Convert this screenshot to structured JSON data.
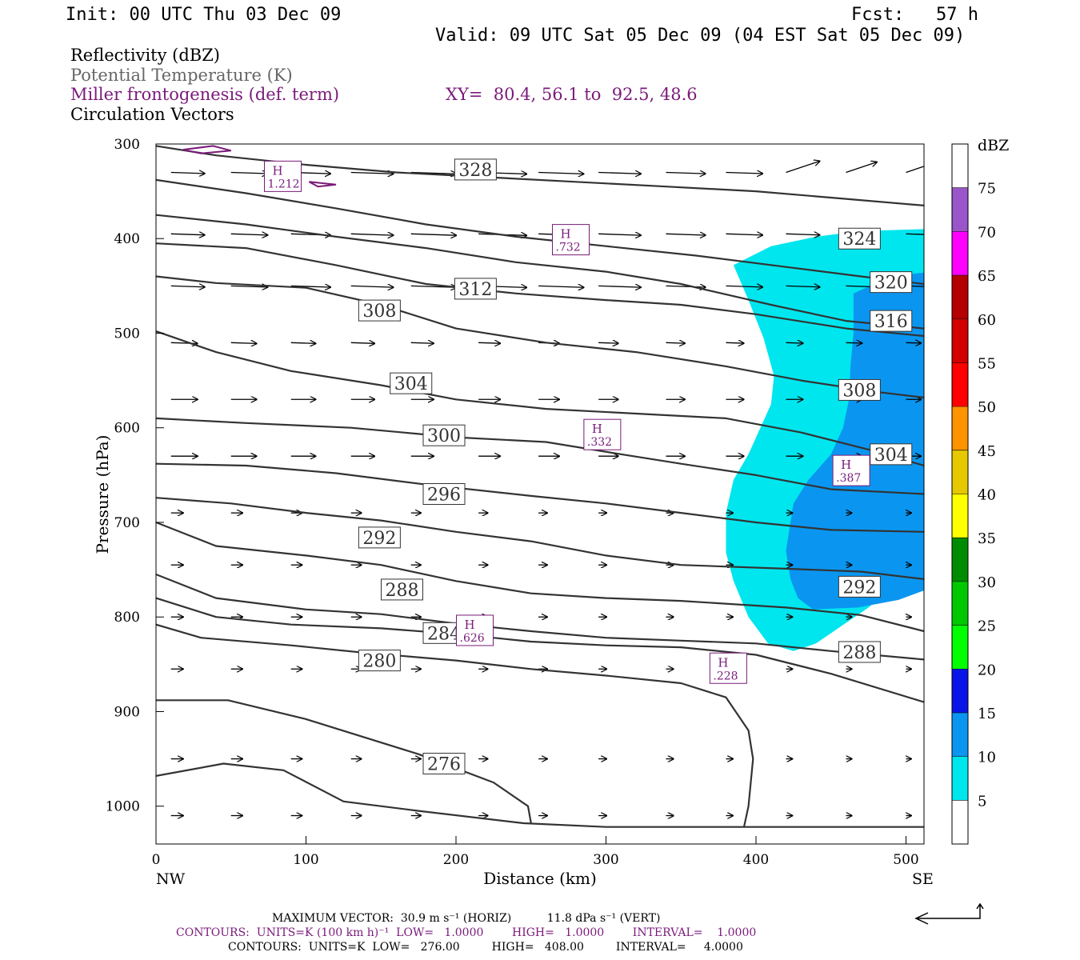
{
  "header": {
    "init": "Init: 00 UTC Thu 03 Dec 09",
    "fcst": "Fcst:   57 h",
    "valid": "Valid: 09 UTC Sat 05 Dec 09 (04 EST Sat 05 Dec 09)"
  },
  "legend": {
    "reflectivity": "Reflectivity (dBZ)",
    "theta": "Potential Temperature (K)",
    "miller": "Miller frontogenesis (def. term)",
    "xy": "XY=  80.4, 56.1 to  92.5, 48.6",
    "vectors": "Circulation Vectors"
  },
  "footer": {
    "max_vector": "MAXIMUM VECTOR:  30.9 m s⁻¹ (HORIZ)          11.8 dPa s⁻¹ (VERT)",
    "contours1": "CONTOURS:  UNITS=K (100 km h)⁻¹  LOW=   1.0000        HIGH=   1.0000        INTERVAL=    1.0000",
    "contours2": "CONTOURS:  UNITS=K  LOW=   276.00         HIGH=   408.00         INTERVAL=     4.0000"
  },
  "chart_data": {
    "type": "contour",
    "xlabel": "Distance (km)",
    "ylabel": "Pressure (hPa)",
    "xlim": [
      0,
      512
    ],
    "ylim": [
      1040,
      300
    ],
    "x_ticks": [
      0,
      100,
      200,
      300,
      400,
      500
    ],
    "y_ticks": [
      300,
      400,
      500,
      600,
      700,
      800,
      900,
      1000
    ],
    "x_end_labels": {
      "left": "NW",
      "right": "SE"
    },
    "colorbar": {
      "label": "dBZ",
      "ticks": [
        5,
        10,
        15,
        20,
        25,
        30,
        35,
        40,
        45,
        50,
        55,
        60,
        65,
        70,
        75
      ],
      "colors": [
        "#ffffff",
        "#00e6ee",
        "#0a96f0",
        "#0b14e6",
        "#00ff00",
        "#00c800",
        "#008c00",
        "#ffff00",
        "#e6c800",
        "#ff9400",
        "#ff0000",
        "#d20000",
        "#b40000",
        "#ff00ff",
        "#9955c9",
        "#ffffff"
      ]
    },
    "theta_contours": [
      {
        "value": 276,
        "points": [
          [
            0,
            968
          ],
          [
            45,
            955
          ],
          [
            85,
            962
          ],
          [
            125,
            995
          ],
          [
            175,
            1005
          ],
          [
            245,
            1018
          ],
          [
            300,
            1022
          ],
          [
            512,
            1022
          ]
        ]
      },
      {
        "value": 276,
        "points": [
          [
            0,
            888
          ],
          [
            48,
            888
          ],
          [
            100,
            908
          ],
          [
            175,
            945
          ],
          [
            225,
            975
          ],
          [
            248,
            1000
          ],
          [
            250,
            1018
          ]
        ]
      },
      {
        "value": 280,
        "points": [
          [
            0,
            808
          ],
          [
            30,
            822
          ],
          [
            90,
            830
          ],
          [
            140,
            838
          ],
          [
            200,
            846
          ],
          [
            250,
            855
          ],
          [
            300,
            862
          ],
          [
            350,
            870
          ],
          [
            380,
            885
          ],
          [
            395,
            920
          ],
          [
            398,
            950
          ],
          [
            395,
            1000
          ],
          [
            392,
            1022
          ]
        ]
      },
      {
        "value": 284,
        "points": [
          [
            0,
            780
          ],
          [
            40,
            800
          ],
          [
            90,
            808
          ],
          [
            150,
            812
          ],
          [
            200,
            818
          ],
          [
            250,
            826
          ],
          [
            300,
            830
          ],
          [
            350,
            832
          ],
          [
            400,
            840
          ],
          [
            450,
            860
          ],
          [
            512,
            890
          ]
        ]
      },
      {
        "value": 288,
        "points": [
          [
            0,
            755
          ],
          [
            40,
            780
          ],
          [
            100,
            792
          ],
          [
            150,
            797
          ],
          [
            200,
            807
          ],
          [
            250,
            815
          ],
          [
            300,
            822
          ],
          [
            350,
            825
          ],
          [
            400,
            828
          ],
          [
            450,
            836
          ],
          [
            512,
            845
          ]
        ]
      },
      {
        "value": 292,
        "points": [
          [
            0,
            700
          ],
          [
            40,
            725
          ],
          [
            100,
            735
          ],
          [
            150,
            745
          ],
          [
            200,
            762
          ],
          [
            250,
            775
          ],
          [
            300,
            780
          ],
          [
            350,
            783
          ],
          [
            420,
            790
          ],
          [
            470,
            798
          ],
          [
            512,
            815
          ]
        ]
      },
      {
        "value": 296,
        "points": [
          [
            0,
            674
          ],
          [
            50,
            680
          ],
          [
            100,
            690
          ],
          [
            150,
            698
          ],
          [
            200,
            710
          ],
          [
            250,
            720
          ],
          [
            300,
            735
          ],
          [
            350,
            745
          ],
          [
            420,
            749
          ],
          [
            470,
            752
          ],
          [
            512,
            760
          ]
        ]
      },
      {
        "value": 300,
        "points": [
          [
            0,
            638
          ],
          [
            60,
            640
          ],
          [
            120,
            648
          ],
          [
            180,
            660
          ],
          [
            250,
            672
          ],
          [
            300,
            680
          ],
          [
            350,
            690
          ],
          [
            400,
            700
          ],
          [
            450,
            708
          ],
          [
            512,
            710
          ]
        ]
      },
      {
        "value": 304,
        "points": [
          [
            0,
            590
          ],
          [
            60,
            595
          ],
          [
            130,
            600
          ],
          [
            200,
            610
          ],
          [
            260,
            615
          ],
          [
            310,
            628
          ],
          [
            350,
            638
          ],
          [
            400,
            650
          ],
          [
            450,
            665
          ],
          [
            512,
            670
          ]
        ]
      },
      {
        "value": 308,
        "points": [
          [
            0,
            498
          ],
          [
            40,
            520
          ],
          [
            90,
            540
          ],
          [
            150,
            555
          ],
          [
            200,
            570
          ],
          [
            260,
            580
          ],
          [
            320,
            585
          ],
          [
            380,
            590
          ],
          [
            430,
            605
          ],
          [
            480,
            625
          ],
          [
            512,
            640
          ]
        ]
      },
      {
        "value": 312,
        "points": [
          [
            0,
            440
          ],
          [
            40,
            447
          ],
          [
            100,
            452
          ],
          [
            150,
            470
          ],
          [
            200,
            495
          ],
          [
            260,
            510
          ],
          [
            320,
            520
          ],
          [
            380,
            535
          ],
          [
            430,
            550
          ],
          [
            480,
            562
          ],
          [
            512,
            568
          ]
        ]
      },
      {
        "value": 316,
        "points": [
          [
            0,
            405
          ],
          [
            60,
            410
          ],
          [
            120,
            428
          ],
          [
            180,
            448
          ],
          [
            240,
            458
          ],
          [
            300,
            465
          ],
          [
            350,
            470
          ],
          [
            400,
            480
          ],
          [
            460,
            495
          ],
          [
            512,
            503
          ]
        ]
      },
      {
        "value": 320,
        "points": [
          [
            0,
            375
          ],
          [
            60,
            385
          ],
          [
            120,
            398
          ],
          [
            180,
            410
          ],
          [
            240,
            425
          ],
          [
            300,
            435
          ],
          [
            350,
            448
          ],
          [
            410,
            470
          ],
          [
            460,
            487
          ],
          [
            512,
            495
          ]
        ]
      },
      {
        "value": 324,
        "points": [
          [
            0,
            338
          ],
          [
            60,
            352
          ],
          [
            120,
            368
          ],
          [
            180,
            385
          ],
          [
            240,
            398
          ],
          [
            300,
            408
          ],
          [
            360,
            418
          ],
          [
            420,
            430
          ],
          [
            470,
            440
          ],
          [
            512,
            448
          ]
        ]
      },
      {
        "value": 328,
        "points": [
          [
            0,
            302
          ],
          [
            40,
            312
          ],
          [
            100,
            322
          ],
          [
            160,
            330
          ],
          [
            220,
            335
          ],
          [
            280,
            340
          ],
          [
            340,
            345
          ],
          [
            400,
            350
          ],
          [
            460,
            358
          ],
          [
            512,
            365
          ]
        ]
      }
    ],
    "theta_labels": [
      {
        "text": "328",
        "x": 213,
        "y": 327
      },
      {
        "text": "324",
        "x": 469,
        "y": 400
      },
      {
        "text": "320",
        "x": 490,
        "y": 446
      },
      {
        "text": "316",
        "x": 490,
        "y": 487
      },
      {
        "text": "312",
        "x": 213,
        "y": 453
      },
      {
        "text": "308",
        "x": 149,
        "y": 476
      },
      {
        "text": "308",
        "x": 469,
        "y": 560
      },
      {
        "text": "304",
        "x": 170,
        "y": 553
      },
      {
        "text": "304",
        "x": 490,
        "y": 628
      },
      {
        "text": "300",
        "x": 192,
        "y": 608
      },
      {
        "text": "296",
        "x": 192,
        "y": 670
      },
      {
        "text": "292",
        "x": 149,
        "y": 716
      },
      {
        "text": "292",
        "x": 469,
        "y": 768
      },
      {
        "text": "288",
        "x": 164,
        "y": 771
      },
      {
        "text": "288",
        "x": 469,
        "y": 837
      },
      {
        "text": "284",
        "x": 192,
        "y": 817
      },
      {
        "text": "280",
        "x": 149,
        "y": 846
      },
      {
        "text": "276",
        "x": 192,
        "y": 955
      }
    ],
    "frontogenesis_maxima": [
      {
        "label": "H",
        "value": "1.212",
        "x": 84,
        "y": 335
      },
      {
        "label": "H",
        "value": ".732",
        "x": 276,
        "y": 402
      },
      {
        "label": "H",
        "value": ".332",
        "x": 297,
        "y": 608
      },
      {
        "label": "H",
        "value": ".387",
        "x": 463,
        "y": 646
      },
      {
        "label": "H",
        "value": ".626",
        "x": 212,
        "y": 815
      },
      {
        "label": "H",
        "value": ".228",
        "x": 381,
        "y": 855
      }
    ],
    "reflectivity_regions": [
      {
        "dbz": 5,
        "points": [
          [
            385,
            428
          ],
          [
            410,
            408
          ],
          [
            440,
            398
          ],
          [
            470,
            392
          ],
          [
            512,
            390
          ],
          [
            512,
            742
          ],
          [
            475,
            790
          ],
          [
            440,
            828
          ],
          [
            425,
            836
          ],
          [
            408,
            828
          ],
          [
            395,
            800
          ],
          [
            385,
            762
          ],
          [
            380,
            732
          ],
          [
            380,
            690
          ],
          [
            385,
            655
          ],
          [
            395,
            628
          ],
          [
            410,
            575
          ],
          [
            412,
            545
          ],
          [
            405,
            505
          ],
          [
            395,
            465
          ]
        ]
      },
      {
        "dbz": 10,
        "points": [
          [
            465,
            458
          ],
          [
            490,
            440
          ],
          [
            512,
            436
          ],
          [
            512,
            772
          ],
          [
            495,
            782
          ],
          [
            468,
            790
          ],
          [
            438,
            792
          ],
          [
            428,
            780
          ],
          [
            423,
            760
          ],
          [
            420,
            730
          ],
          [
            423,
            700
          ],
          [
            425,
            680
          ],
          [
            435,
            655
          ],
          [
            450,
            628
          ],
          [
            458,
            600
          ],
          [
            462,
            570
          ],
          [
            463,
            535
          ],
          [
            465,
            500
          ]
        ]
      }
    ],
    "miller_contour": {
      "points": [
        [
          18,
          306
        ],
        [
          38,
          302
        ],
        [
          50,
          307
        ],
        [
          30,
          310
        ],
        [
          18,
          306
        ]
      ]
    },
    "miller_contour2": {
      "points": [
        [
          102,
          340
        ],
        [
          120,
          343
        ],
        [
          108,
          345
        ],
        [
          102,
          340
        ]
      ]
    }
  }
}
